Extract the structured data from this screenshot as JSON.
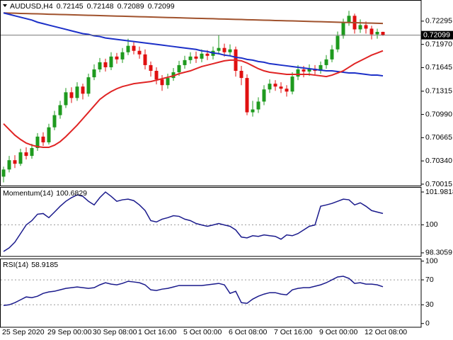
{
  "chart_data": [
    {
      "type": "candlestick",
      "title": "AUDUSD,H4",
      "categories": [
        "25 Sep 2020",
        null,
        null,
        null,
        null,
        null,
        null,
        null,
        "29 Sep 00:00",
        null,
        null,
        null,
        null,
        null,
        null,
        null,
        "30 Sep 08:00",
        null,
        null,
        null,
        null,
        null,
        null,
        null,
        "1 Oct 16:00",
        null,
        null,
        null,
        null,
        null,
        null,
        null,
        "5 Oct 00:00",
        null,
        null,
        null,
        null,
        null,
        null,
        null,
        "6 Oct 08:00",
        null,
        null,
        null,
        null,
        null,
        null,
        null,
        "7 Oct 16:00",
        null,
        null,
        null,
        null,
        null,
        null,
        null,
        "9 Oct 00:00",
        null,
        null,
        null,
        null,
        null,
        null,
        null,
        "12 Oct 08:00",
        null,
        null,
        null
      ],
      "open": [
        0.7012,
        0.7022,
        0.7035,
        0.703,
        0.7046,
        0.7041,
        0.7052,
        0.7068,
        0.706,
        0.7081,
        0.7098,
        0.7112,
        0.713,
        0.7122,
        0.7138,
        0.7128,
        0.7151,
        0.7162,
        0.7172,
        0.7165,
        0.718,
        0.7176,
        0.7186,
        0.7195,
        0.7188,
        0.7183,
        0.7168,
        0.716,
        0.7148,
        0.714,
        0.715,
        0.7158,
        0.7168,
        0.7175,
        0.718,
        0.7177,
        0.7184,
        0.7181,
        0.7188,
        0.7192,
        0.7186,
        0.719,
        0.716,
        0.715,
        0.7102,
        0.7106,
        0.7117,
        0.7134,
        0.7142,
        0.7138,
        0.7135,
        0.7131,
        0.7152,
        0.7162,
        0.7159,
        0.7163,
        0.716,
        0.7168,
        0.7176,
        0.719,
        0.7209,
        0.7228,
        0.7237,
        0.7218,
        0.7224,
        0.7219,
        0.7211,
        0.72145
      ],
      "high": [
        0.7026,
        0.7041,
        0.7042,
        0.7051,
        0.7053,
        0.7058,
        0.7073,
        0.7074,
        0.7086,
        0.7104,
        0.7118,
        0.7136,
        0.7137,
        0.7144,
        0.7142,
        0.7156,
        0.7169,
        0.7178,
        0.7177,
        0.7186,
        0.7185,
        0.7192,
        0.7205,
        0.72,
        0.7194,
        0.719,
        0.7173,
        0.7165,
        0.7154,
        0.7156,
        0.7164,
        0.7174,
        0.7181,
        0.7186,
        0.7187,
        0.719,
        0.7189,
        0.7194,
        0.721,
        0.7198,
        0.7197,
        0.7194,
        0.7167,
        0.7155,
        0.7118,
        0.7123,
        0.714,
        0.7148,
        0.7147,
        0.7144,
        0.714,
        0.7158,
        0.7168,
        0.7167,
        0.7169,
        0.7168,
        0.7173,
        0.7182,
        0.7196,
        0.7215,
        0.7233,
        0.7244,
        0.724,
        0.7232,
        0.7229,
        0.7223,
        0.7219,
        0.72148
      ],
      "low": [
        0.7004,
        0.7018,
        0.7024,
        0.7027,
        0.7036,
        0.7037,
        0.7048,
        0.7055,
        0.7057,
        0.7077,
        0.7093,
        0.7108,
        0.7115,
        0.7118,
        0.712,
        0.7124,
        0.7147,
        0.7158,
        0.7159,
        0.7161,
        0.717,
        0.7171,
        0.7182,
        0.7183,
        0.7177,
        0.7162,
        0.7152,
        0.7141,
        0.7132,
        0.7135,
        0.7146,
        0.7153,
        0.7163,
        0.717,
        0.7171,
        0.7172,
        0.7175,
        0.7176,
        0.7183,
        0.718,
        0.7181,
        0.7152,
        0.714,
        0.7098,
        0.7096,
        0.7101,
        0.7112,
        0.7129,
        0.7132,
        0.7129,
        0.7124,
        0.7127,
        0.7147,
        0.7151,
        0.7153,
        0.7155,
        0.7156,
        0.7163,
        0.7172,
        0.7186,
        0.7205,
        0.7223,
        0.7212,
        0.7213,
        0.7212,
        0.7204,
        0.7205,
        0.72089
      ],
      "close": [
        0.7022,
        0.7035,
        0.703,
        0.7046,
        0.7041,
        0.7052,
        0.7068,
        0.706,
        0.7081,
        0.7098,
        0.7112,
        0.713,
        0.7122,
        0.7138,
        0.7128,
        0.7151,
        0.7162,
        0.7172,
        0.7165,
        0.718,
        0.7176,
        0.7186,
        0.7195,
        0.7188,
        0.7183,
        0.7168,
        0.716,
        0.7148,
        0.714,
        0.715,
        0.7158,
        0.7168,
        0.7175,
        0.718,
        0.7177,
        0.7184,
        0.7181,
        0.7188,
        0.7192,
        0.7186,
        0.719,
        0.716,
        0.715,
        0.7102,
        0.7106,
        0.7117,
        0.7134,
        0.7142,
        0.7138,
        0.7135,
        0.7131,
        0.7152,
        0.7162,
        0.7159,
        0.7163,
        0.716,
        0.7168,
        0.7176,
        0.719,
        0.7209,
        0.7228,
        0.7237,
        0.7218,
        0.7224,
        0.7219,
        0.7211,
        0.72145,
        0.72099
      ],
      "up_color": "#1e9a1e",
      "down_color": "#e01010",
      "lines": [
        {
          "color": "#a0522d",
          "values": [
            0.7241,
            0.72408,
            0.72406,
            0.72403,
            0.72401,
            0.72399,
            0.72397,
            0.72395,
            0.72392,
            0.7239,
            0.72388,
            0.72386,
            0.72384,
            0.72381,
            0.72379,
            0.72377,
            0.72375,
            0.72373,
            0.7237,
            0.72368,
            0.72366,
            0.72364,
            0.72362,
            0.72359,
            0.72357,
            0.72355,
            0.72353,
            0.72351,
            0.72348,
            0.72346,
            0.72344,
            0.72342,
            0.7234,
            0.72337,
            0.72335,
            0.72333,
            0.72331,
            0.72329,
            0.72326,
            0.72324,
            0.72322,
            0.7232,
            0.72318,
            0.72315,
            0.72313,
            0.72311,
            0.72309,
            0.72307,
            0.72304,
            0.72302,
            0.723,
            0.72298,
            0.72296,
            0.72293,
            0.72291,
            0.72289,
            0.72287,
            0.72285,
            0.72282,
            0.7228,
            0.72278,
            0.72276,
            0.72274,
            0.72271,
            0.72269,
            0.72267,
            0.72265,
            0.72263
          ]
        },
        {
          "color": "#1c30c8",
          "values": [
            0.7241,
            0.7239,
            0.7237,
            0.7235,
            0.7233,
            0.7231,
            0.7228,
            0.7226,
            0.7224,
            0.7222,
            0.722,
            0.7218,
            0.7216,
            0.7214,
            0.7212,
            0.7211,
            0.7209,
            0.7208,
            0.7206,
            0.7205,
            0.7204,
            0.7203,
            0.7202,
            0.7201,
            0.72,
            0.7199,
            0.7198,
            0.7197,
            0.7196,
            0.7195,
            0.7194,
            0.7193,
            0.7192,
            0.7191,
            0.719,
            0.7188,
            0.7187,
            0.7185,
            0.7184,
            0.7182,
            0.7181,
            0.7179,
            0.7178,
            0.7176,
            0.7175,
            0.7173,
            0.7172,
            0.717,
            0.7169,
            0.7168,
            0.7167,
            0.7166,
            0.7165,
            0.7164,
            0.7163,
            0.7162,
            0.7161,
            0.716,
            0.716,
            0.7159,
            0.7158,
            0.7157,
            0.7157,
            0.7156,
            0.7155,
            0.7154,
            0.7154,
            0.7153
          ]
        },
        {
          "color": "#e02424",
          "values": [
            0.7086,
            0.7078,
            0.707,
            0.7064,
            0.7059,
            0.7056,
            0.7054,
            0.7053,
            0.7053,
            0.7056,
            0.7061,
            0.7068,
            0.7076,
            0.7084,
            0.7093,
            0.7102,
            0.7111,
            0.712,
            0.7126,
            0.7131,
            0.7135,
            0.7138,
            0.714,
            0.7142,
            0.7143,
            0.7144,
            0.7145,
            0.7147,
            0.7149,
            0.7151,
            0.7153,
            0.7156,
            0.7158,
            0.716,
            0.7163,
            0.7166,
            0.7168,
            0.717,
            0.7172,
            0.7174,
            0.7175,
            0.7175,
            0.7174,
            0.7171,
            0.7167,
            0.7163,
            0.716,
            0.7158,
            0.7157,
            0.7156,
            0.7155,
            0.7155,
            0.7155,
            0.7155,
            0.7155,
            0.7154,
            0.7153,
            0.7152,
            0.7154,
            0.7157,
            0.716,
            0.7165,
            0.717,
            0.7174,
            0.7178,
            0.7182,
            0.7185,
            0.7188
          ]
        }
      ],
      "ylim": [
        0.69995,
        0.72571
      ],
      "yticks": [
        0.72295,
        {
          "value": 0.7197,
          "label": "0.71970"
        },
        0.71645,
        0.71315,
        {
          "value": 0.7099,
          "label": "0.70990"
        },
        0.70665,
        {
          "value": 0.7034,
          "label": "0.70340"
        },
        0.70015
      ]
    },
    {
      "type": "line",
      "title": "Momentum(14)",
      "color": "#1a1a8c",
      "values": [
        98.39,
        98.61,
        98.95,
        99.47,
        99.99,
        100.25,
        100.64,
        100.68,
        100.43,
        100.77,
        101.12,
        101.42,
        101.64,
        101.81,
        101.72,
        101.42,
        101.2,
        101.64,
        101.98,
        101.72,
        101.42,
        101.51,
        101.55,
        101.46,
        101.2,
        100.86,
        100.25,
        100.17,
        100.34,
        100.43,
        100.55,
        100.51,
        100.34,
        100.25,
        100.08,
        99.99,
        99.91,
        99.99,
        100.08,
        99.99,
        99.91,
        99.69,
        99.26,
        99.21,
        99.34,
        99.3,
        99.39,
        99.34,
        99.3,
        99.13,
        99.39,
        99.34,
        99.47,
        99.69,
        99.91,
        99.99,
        101.12,
        101.2,
        101.29,
        101.42,
        101.55,
        101.51,
        101.2,
        101.33,
        101.12,
        100.86,
        100.77,
        100.6829
      ],
      "ylim": [
        98.09,
        102.24
      ],
      "yticks": [
        101.9818,
        100,
        98.3059
      ],
      "levels": [
        100
      ]
    },
    {
      "type": "line",
      "title": "RSI(14)",
      "color": "#1a1a8c",
      "values": [
        28.9,
        30.0,
        33.4,
        38.0,
        42.6,
        41.4,
        43.7,
        48.3,
        50.6,
        51.7,
        54.0,
        56.3,
        57.4,
        58.6,
        57.4,
        56.3,
        57.4,
        62.0,
        65.4,
        63.1,
        62.0,
        64.3,
        67.7,
        66.6,
        65.4,
        62.0,
        54.0,
        52.9,
        55.1,
        56.3,
        58.6,
        60.9,
        60.9,
        60.9,
        60.9,
        60.9,
        62.0,
        63.1,
        64.3,
        62.0,
        48.3,
        51.7,
        33.4,
        32.3,
        39.1,
        43.7,
        47.1,
        49.4,
        49.4,
        47.1,
        46.0,
        54.0,
        56.3,
        57.4,
        57.4,
        59.7,
        62.0,
        65.4,
        70.0,
        74.6,
        75.7,
        72.3,
        64.3,
        65.4,
        63.1,
        63.1,
        62.0,
        58.9185
      ],
      "ylim": [
        -6,
        103
      ],
      "yticks": [
        100,
        70,
        30,
        0
      ],
      "levels": [
        70,
        30
      ]
    }
  ]
}
